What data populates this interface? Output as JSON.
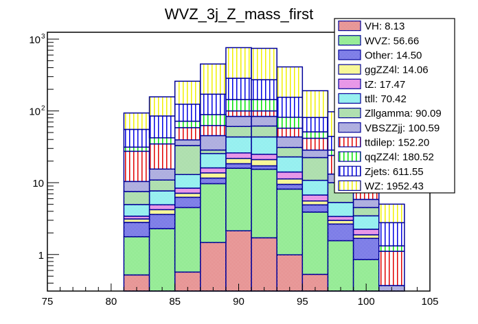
{
  "chart_data": {
    "type": "bar",
    "stacked": true,
    "title": "WVZ_3j_Z_mass_first",
    "xlabel": "",
    "ylabel": "",
    "xlim": [
      75,
      105
    ],
    "ylim": [
      0.31,
      1245
    ],
    "yscale": "log",
    "x_ticks": [
      75,
      80,
      85,
      90,
      95,
      100,
      105
    ],
    "y_ticks": [
      {
        "value": 1,
        "label": "1"
      },
      {
        "value": 10,
        "label": "10"
      },
      {
        "value": 100,
        "label": "10",
        "exp": "2"
      },
      {
        "value": 1000,
        "label": "10",
        "exp": "3"
      }
    ],
    "bin_edges": [
      81,
      83,
      85,
      87,
      89,
      91,
      93,
      95,
      97,
      99,
      101,
      103
    ],
    "legend_position": "top-right",
    "series": [
      {
        "name": "VH",
        "yield": "8.13",
        "color": "#d03030",
        "pattern": "checker",
        "values": [
          0.52,
          0,
          0.57,
          1.47,
          2.14,
          1.71,
          0.99,
          0.53,
          0,
          0,
          0
        ]
      },
      {
        "name": "WVZ",
        "yield": "56.66",
        "color": "#30d830",
        "pattern": "checker",
        "values": [
          1.25,
          2.29,
          3.94,
          8.24,
          13.76,
          13.69,
          7.16,
          3.37,
          1.56,
          0.85,
          0
        ]
      },
      {
        "name": "Other",
        "yield": "14.50",
        "color": "#0000d0",
        "pattern": "checker",
        "values": [
          1.03,
          1.33,
          1.76,
          1.89,
          2.5,
          1.8,
          1.35,
          1.02,
          1.1,
          0.83,
          0
        ]
      },
      {
        "name": "ggZZ4l",
        "yield": "14.06",
        "color": "#f0f030",
        "pattern": "checker",
        "values": [
          0.33,
          0.6,
          0.87,
          2.1,
          3.4,
          3.8,
          1.8,
          0.65,
          0.33,
          0.2,
          0
        ]
      },
      {
        "name": "tZ",
        "yield": "17.47",
        "color": "#d030d0",
        "pattern": "checker",
        "values": [
          0.29,
          0.71,
          1.26,
          2.4,
          4.2,
          3.9,
          2.8,
          1.17,
          0.4,
          0.37,
          0
        ]
      },
      {
        "name": "ttll",
        "yield": "70.42",
        "color": "#30e0e0",
        "pattern": "checker",
        "values": [
          1.54,
          2.76,
          4.6,
          9.4,
          17.4,
          18.5,
          8.8,
          4.06,
          1.91,
          1.21,
          0
        ]
      },
      {
        "name": "Zllgamma",
        "yield": "90.09",
        "color": "#60c060",
        "pattern": "checker",
        "values": [
          2.57,
          3.21,
          19.9,
          3.0,
          17.3,
          18.2,
          8.1,
          11.6,
          4.7,
          1.05,
          0
        ]
      },
      {
        "name": "VBSZZjj",
        "yield": "100.59",
        "color": "#6060c0",
        "pattern": "checker",
        "values": [
          2.88,
          4.6,
          6.6,
          16.8,
          23.2,
          22.3,
          12.4,
          6.1,
          3.2,
          1.35,
          0.37
        ]
      },
      {
        "name": "ttdilep",
        "yield": "152.20",
        "color": "#e00000",
        "pattern": "vstripe",
        "values": [
          17.0,
          19.2,
          18.9,
          17.3,
          16.1,
          16.1,
          14.1,
          13.1,
          10.8,
          2.5,
          0.74
        ]
      },
      {
        "name": "qqZZ4l",
        "yield": "180.52",
        "color": "#00e000",
        "pattern": "vstripe",
        "values": [
          3.9,
          7.5,
          13.5,
          26.3,
          44,
          44,
          24.1,
          9.5,
          4.5,
          3.0,
          0.21
        ]
      },
      {
        "name": "Zjets",
        "yield": "611.55",
        "color": "#0000e0",
        "pattern": "vstripe",
        "values": [
          24.0,
          42.8,
          52.1,
          82.1,
          141,
          128,
          73.4,
          29.9,
          15.7,
          21,
          1.46
        ]
      },
      {
        "name": "WZ",
        "yield": "1952.43",
        "color": "#f0f000",
        "pattern": "vstripe",
        "values": [
          38.2,
          72.0,
          135,
          279,
          475,
          471,
          255,
          110,
          53.1,
          62,
          2.25
        ]
      }
    ],
    "outline_color": "#000099"
  }
}
